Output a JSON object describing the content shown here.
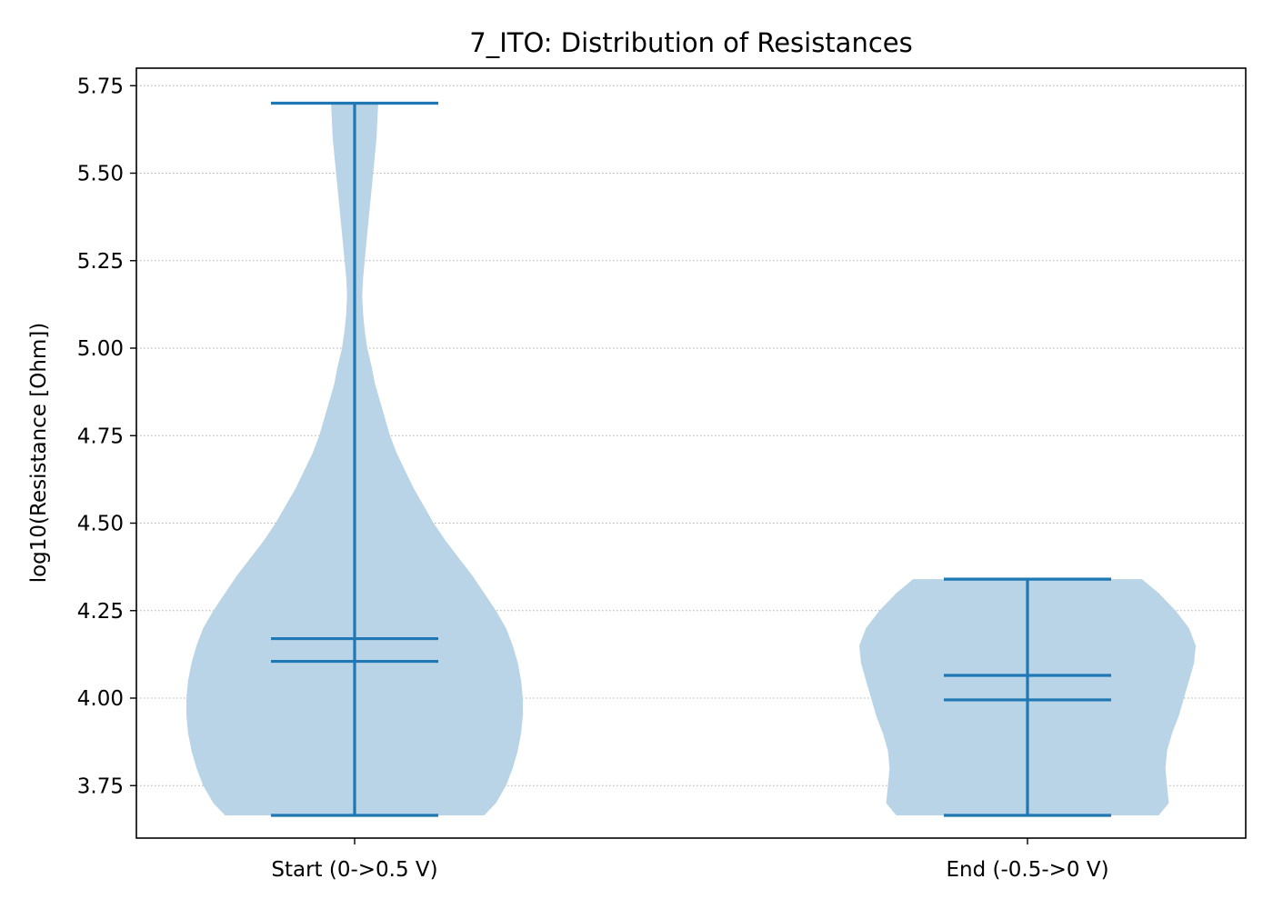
{
  "chart_data": {
    "type": "violin",
    "title": "7_ITO: Distribution of Resistances",
    "xlabel": "",
    "ylabel": "log10(Resistance [Ohm])",
    "ylim": [
      3.6,
      5.8
    ],
    "yticks": [
      "3.75",
      "4.00",
      "4.25",
      "4.50",
      "4.75",
      "5.00",
      "5.25",
      "5.50",
      "5.75"
    ],
    "grid": "y-dotted",
    "colors": {
      "body": "#b9d4e7",
      "lines": "#1f77b4",
      "grid": "#b0b0b0"
    },
    "categories": [
      "Start (0->0.5 V)",
      "End (-0.5->0 V)"
    ],
    "series": [
      {
        "name": "Start (0->0.5 V)",
        "min": 3.665,
        "max": 5.7,
        "mean": 4.17,
        "median": 4.105,
        "density": [
          [
            3.665,
            0.77
          ],
          [
            3.7,
            0.84
          ],
          [
            3.75,
            0.9
          ],
          [
            3.8,
            0.94
          ],
          [
            3.85,
            0.97
          ],
          [
            3.9,
            0.99
          ],
          [
            3.95,
            1.0
          ],
          [
            4.0,
            1.0
          ],
          [
            4.05,
            0.99
          ],
          [
            4.1,
            0.97
          ],
          [
            4.15,
            0.94
          ],
          [
            4.2,
            0.9
          ],
          [
            4.25,
            0.84
          ],
          [
            4.3,
            0.77
          ],
          [
            4.35,
            0.7
          ],
          [
            4.4,
            0.62
          ],
          [
            4.45,
            0.54
          ],
          [
            4.5,
            0.47
          ],
          [
            4.55,
            0.41
          ],
          [
            4.6,
            0.35
          ],
          [
            4.65,
            0.3
          ],
          [
            4.7,
            0.25
          ],
          [
            4.75,
            0.21
          ],
          [
            4.8,
            0.18
          ],
          [
            4.85,
            0.15
          ],
          [
            4.9,
            0.12
          ],
          [
            4.95,
            0.1
          ],
          [
            5.0,
            0.075
          ],
          [
            5.05,
            0.06
          ],
          [
            5.1,
            0.05
          ],
          [
            5.15,
            0.045
          ],
          [
            5.2,
            0.05
          ],
          [
            5.3,
            0.07
          ],
          [
            5.4,
            0.09
          ],
          [
            5.5,
            0.11
          ],
          [
            5.6,
            0.13
          ],
          [
            5.7,
            0.14
          ]
        ]
      },
      {
        "name": "End (-0.5->0 V)",
        "min": 3.665,
        "max": 4.34,
        "mean": 4.065,
        "median": 3.995,
        "density": [
          [
            3.665,
            0.78
          ],
          [
            3.7,
            0.84
          ],
          [
            3.75,
            0.83
          ],
          [
            3.8,
            0.82
          ],
          [
            3.85,
            0.83
          ],
          [
            3.9,
            0.86
          ],
          [
            3.95,
            0.9
          ],
          [
            4.0,
            0.93
          ],
          [
            4.05,
            0.96
          ],
          [
            4.1,
            0.99
          ],
          [
            4.15,
            1.0
          ],
          [
            4.2,
            0.96
          ],
          [
            4.25,
            0.88
          ],
          [
            4.3,
            0.78
          ],
          [
            4.34,
            0.68
          ]
        ]
      }
    ]
  }
}
